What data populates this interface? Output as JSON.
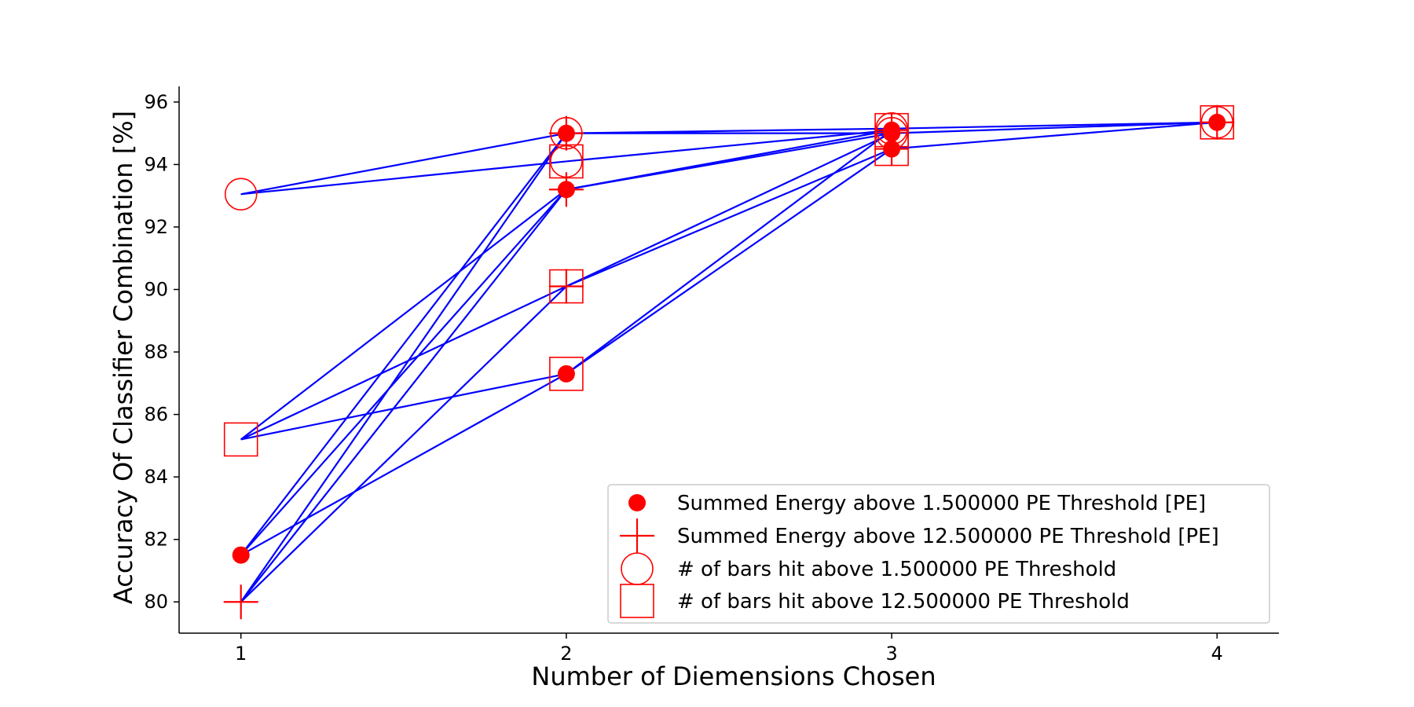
{
  "chart_data": {
    "type": "scatter",
    "title": "",
    "xlabel": "Number of Diemensions Chosen",
    "ylabel": "Accuracy Of Classifier Combination [%]",
    "xlim": [
      0.81,
      4.19
    ],
    "ylim": [
      79.0,
      96.5
    ],
    "xticks": [
      1,
      2,
      3,
      4
    ],
    "yticks": [
      80,
      82,
      84,
      86,
      88,
      90,
      92,
      94,
      96
    ],
    "grid": false,
    "legend_position": "lower-right",
    "colors": {
      "markers": "#ff0000",
      "lines": "#0000ff"
    },
    "series": [
      {
        "name": "Summed Energy above 1.500000 PE Threshold [PE]",
        "marker": "filled-circle",
        "points": [
          [
            1,
            81.5
          ],
          [
            2,
            95.0
          ],
          [
            2,
            93.2
          ],
          [
            2,
            87.3
          ],
          [
            3,
            95.1
          ],
          [
            3,
            94.5
          ],
          [
            3,
            95.0
          ],
          [
            4,
            95.35
          ]
        ]
      },
      {
        "name": "Summed Energy above 12.500000 PE Threshold [PE]",
        "marker": "plus",
        "points": [
          [
            1,
            80.0
          ],
          [
            2,
            95.0
          ],
          [
            2,
            93.2
          ],
          [
            2,
            90.1
          ],
          [
            3,
            95.1
          ],
          [
            3,
            94.5
          ],
          [
            4,
            95.35
          ]
        ]
      },
      {
        "name": "# of bars hit above 1.500000 PE Threshold",
        "marker": "open-circle",
        "points": [
          [
            1,
            93.05
          ],
          [
            2,
            95.0
          ],
          [
            2,
            94.1
          ],
          [
            3,
            95.15
          ],
          [
            3,
            95.0
          ],
          [
            4,
            95.35
          ]
        ]
      },
      {
        "name": "# of bars hit above 12.500000 PE Threshold",
        "marker": "open-square",
        "points": [
          [
            1,
            85.2
          ],
          [
            2,
            94.1
          ],
          [
            2,
            90.1
          ],
          [
            2,
            87.3
          ],
          [
            3,
            95.1
          ],
          [
            3,
            94.5
          ],
          [
            4,
            95.35
          ]
        ]
      }
    ],
    "connections": [
      [
        [
          1,
          93.05
        ],
        [
          2,
          95.0
        ]
      ],
      [
        [
          1,
          93.05
        ],
        [
          2,
          94.1
        ]
      ],
      [
        [
          1,
          85.2
        ],
        [
          2,
          93.2
        ]
      ],
      [
        [
          1,
          85.2
        ],
        [
          2,
          90.1
        ]
      ],
      [
        [
          1,
          85.2
        ],
        [
          2,
          87.3
        ]
      ],
      [
        [
          1,
          81.5
        ],
        [
          2,
          95.0
        ]
      ],
      [
        [
          1,
          81.5
        ],
        [
          2,
          93.2
        ]
      ],
      [
        [
          1,
          81.5
        ],
        [
          2,
          87.3
        ]
      ],
      [
        [
          1,
          80.0
        ],
        [
          2,
          95.0
        ]
      ],
      [
        [
          1,
          80.0
        ],
        [
          2,
          93.2
        ]
      ],
      [
        [
          1,
          80.0
        ],
        [
          2,
          90.1
        ]
      ],
      [
        [
          2,
          95.0
        ],
        [
          3,
          95.15
        ]
      ],
      [
        [
          2,
          95.0
        ],
        [
          3,
          95.0
        ]
      ],
      [
        [
          2,
          94.1
        ],
        [
          3,
          95.1
        ]
      ],
      [
        [
          2,
          93.2
        ],
        [
          3,
          95.1
        ]
      ],
      [
        [
          2,
          93.2
        ],
        [
          3,
          95.0
        ]
      ],
      [
        [
          2,
          90.1
        ],
        [
          3,
          94.5
        ]
      ],
      [
        [
          2,
          90.1
        ],
        [
          3,
          95.0
        ]
      ],
      [
        [
          2,
          87.3
        ],
        [
          3,
          94.5
        ]
      ],
      [
        [
          2,
          87.3
        ],
        [
          3,
          95.1
        ]
      ],
      [
        [
          3,
          95.15
        ],
        [
          4,
          95.35
        ]
      ],
      [
        [
          3,
          95.0
        ],
        [
          4,
          95.35
        ]
      ],
      [
        [
          3,
          94.5
        ],
        [
          4,
          95.35
        ]
      ]
    ]
  }
}
